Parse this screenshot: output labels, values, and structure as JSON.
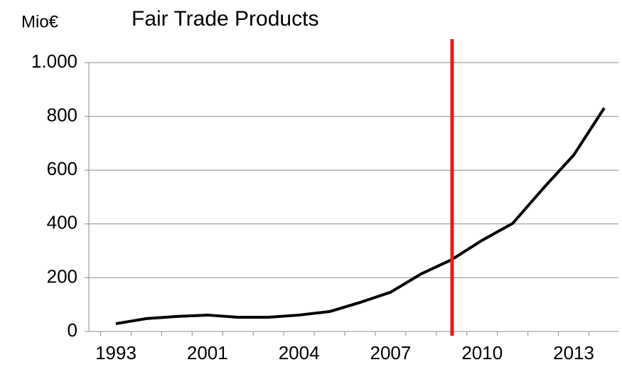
{
  "chart_data": {
    "type": "line",
    "title": "Fair Trade Products",
    "y_label": "Mio€",
    "categories": [
      "1993",
      null,
      null,
      "2001",
      null,
      null,
      "2004",
      null,
      null,
      "2007",
      null,
      null,
      "2010",
      null,
      null,
      "2013",
      null
    ],
    "series": [
      {
        "color": "#000000",
        "values": [
          29,
          48,
          56,
          61,
          53,
          53,
          61,
          74,
          108,
          146,
          214,
          267,
          339,
          402,
          532,
          656,
          831
        ]
      }
    ],
    "ylim": [
      0,
      1000
    ],
    "yticks": [
      0,
      200,
      400,
      600,
      800,
      {
        "value": 1000,
        "label": "1.000"
      }
    ],
    "grid": true
  }
}
